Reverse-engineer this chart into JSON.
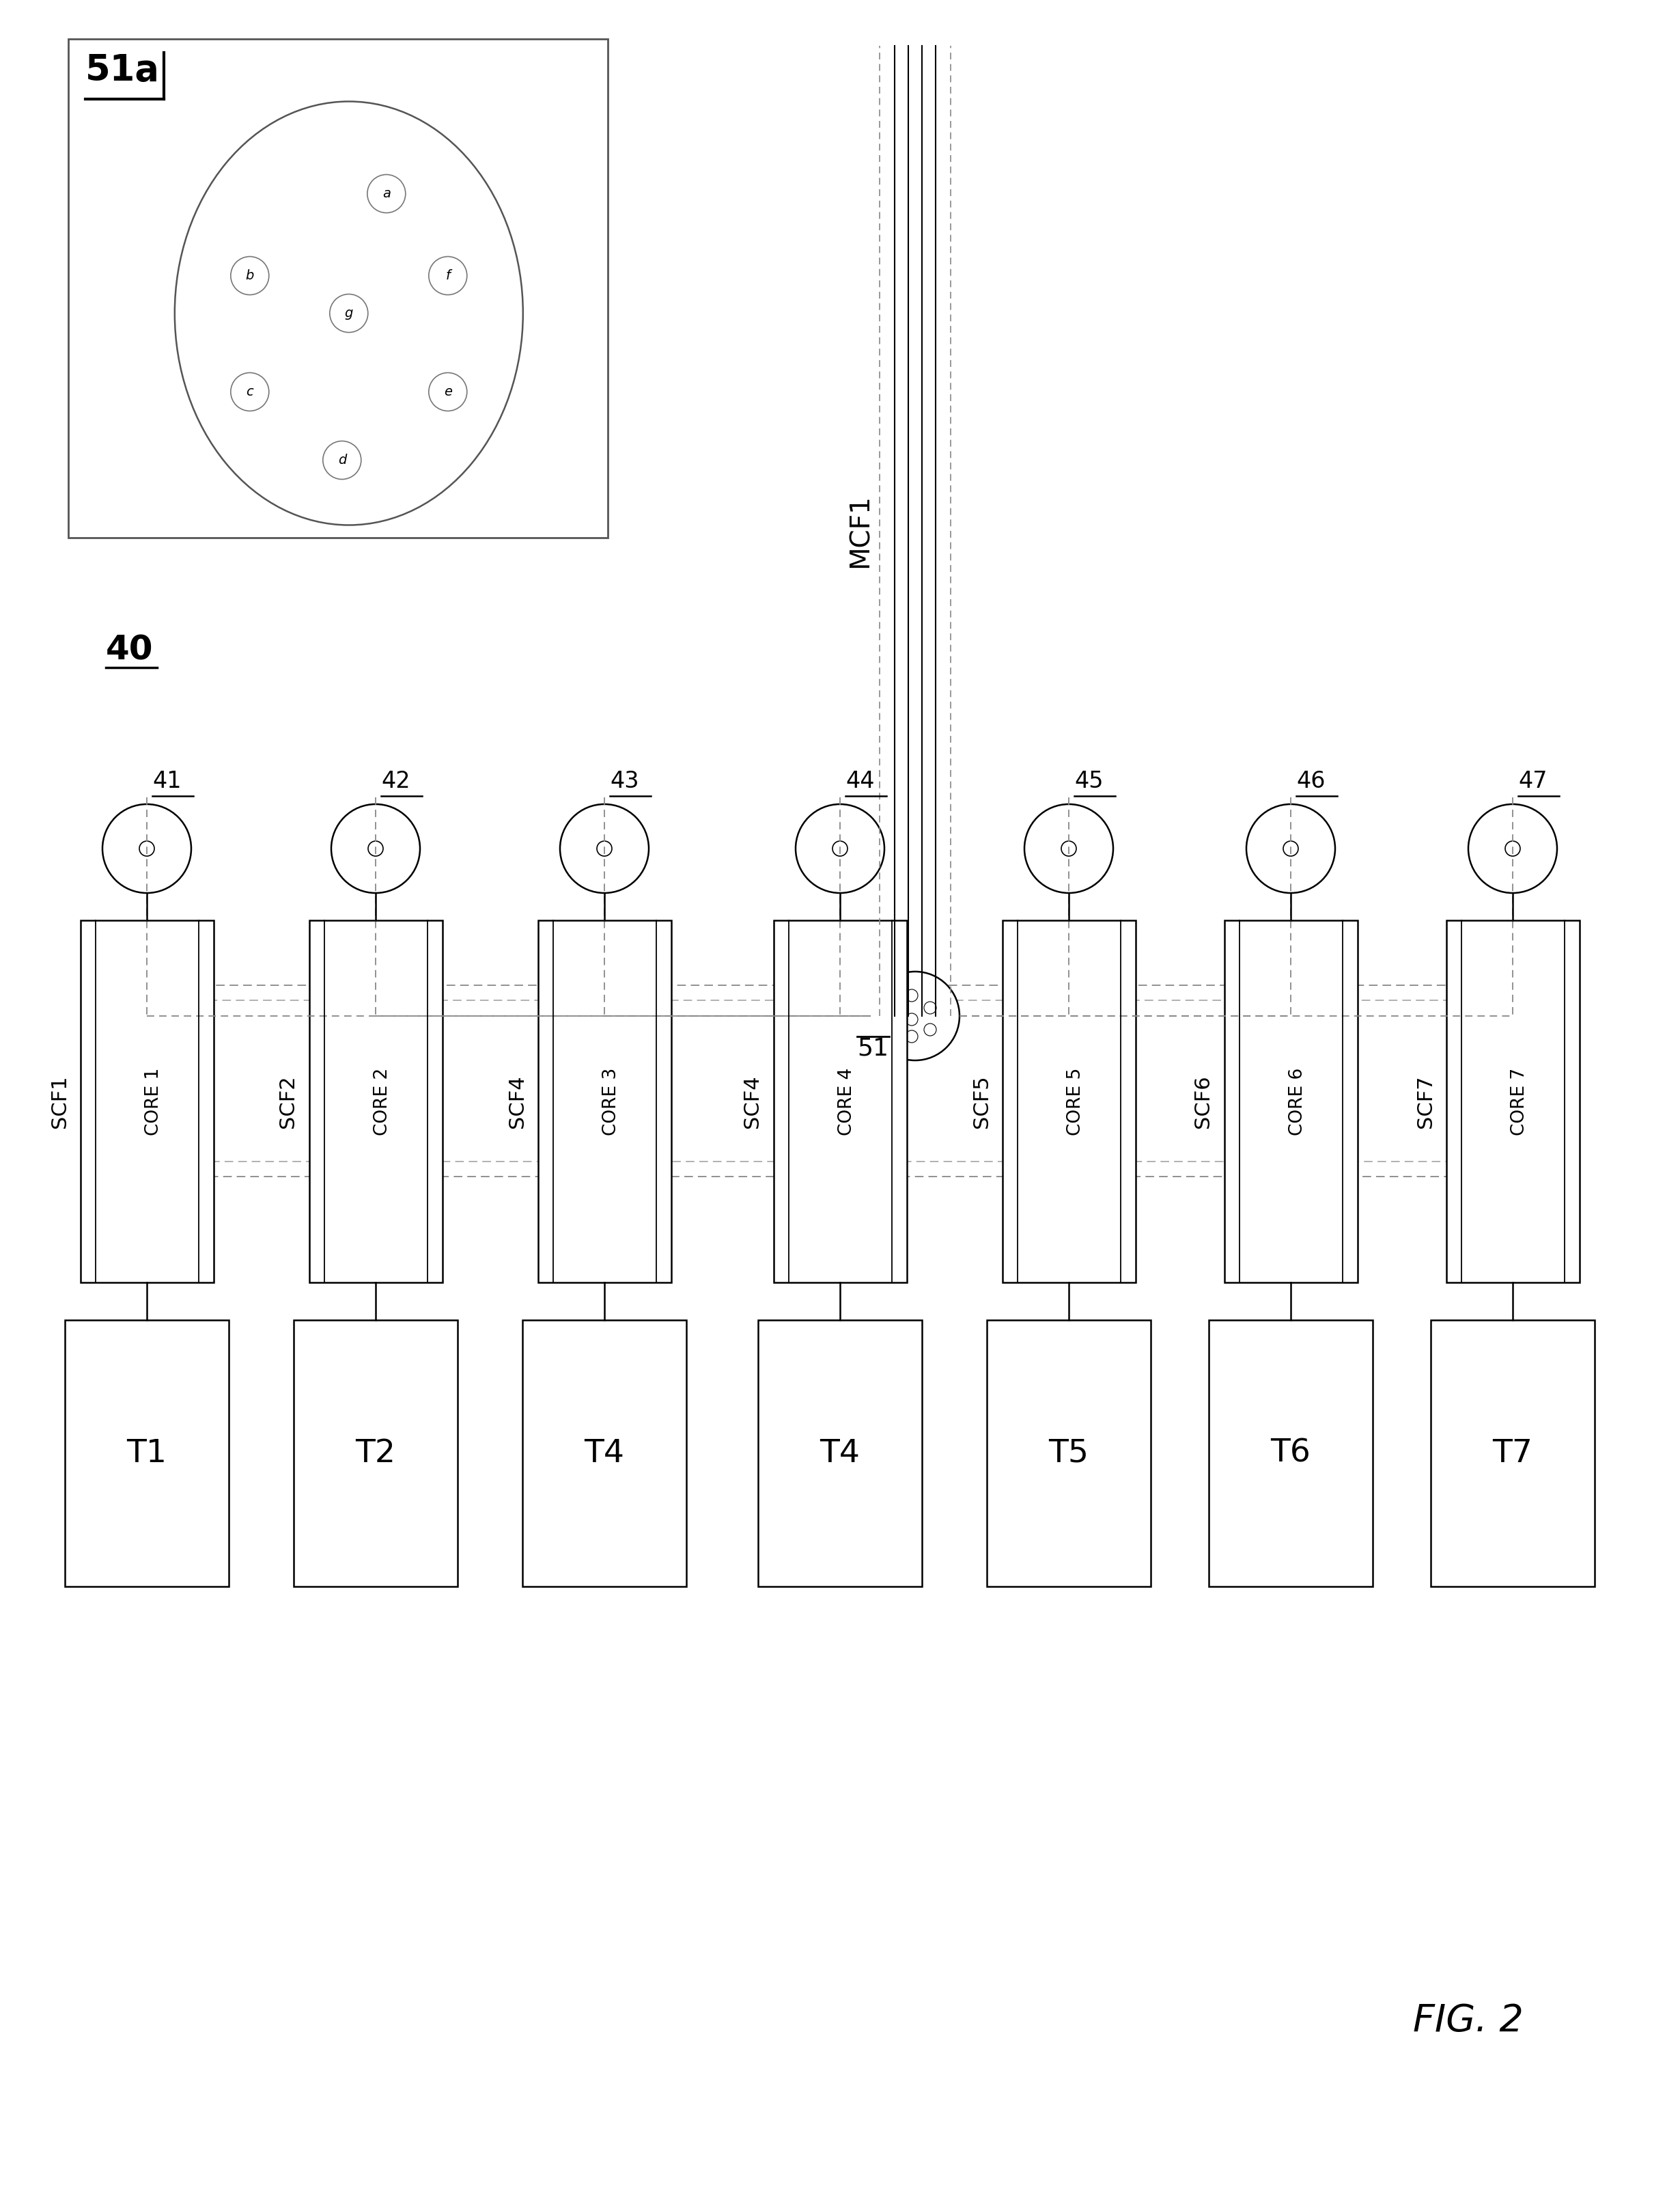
{
  "bg_color": "#ffffff",
  "fig_width": 24.6,
  "fig_height": 32.17,
  "scf_labels": [
    "SCF1",
    "SCF2",
    "SCF4",
    "SCF4",
    "SCF5",
    "SCF6",
    "SCF7"
  ],
  "core_labels": [
    "CORE 1",
    "CORE 2",
    "CORE 3",
    "CORE 4",
    "CORE 5",
    "CORE 6",
    "CORE 7"
  ],
  "t_labels": [
    "T1",
    "T2",
    "T4",
    "T4",
    "T5",
    "T6",
    "T7"
  ],
  "fiber_nums": [
    "41",
    "42",
    "43",
    "44",
    "45",
    "46",
    "47"
  ],
  "n_fibers": 7,
  "inset_core_labels": [
    "a",
    "b",
    "f",
    "g",
    "c",
    "e",
    "d"
  ]
}
